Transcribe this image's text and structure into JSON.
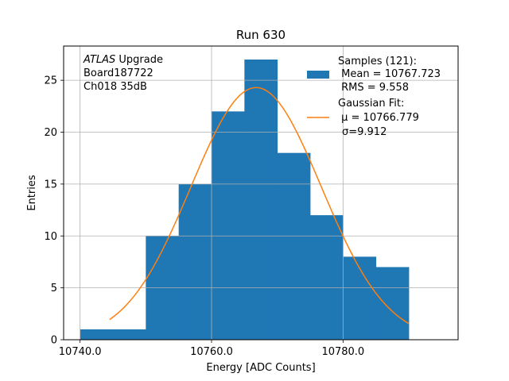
{
  "chart_data": {
    "type": "bar",
    "title": "Run 630",
    "xlabel": "Energy [ADC Counts]",
    "ylabel": "Entries",
    "xlim": [
      10737.5,
      10797.5
    ],
    "ylim": [
      0,
      28.3
    ],
    "x_ticks": [
      10740,
      10760,
      10780
    ],
    "x_tick_labels": [
      "10740.0",
      "10760.0",
      "10780.0"
    ],
    "y_ticks": [
      0,
      5,
      10,
      15,
      20,
      25
    ],
    "y_tick_labels": [
      "0",
      "5",
      "10",
      "15",
      "20",
      "25"
    ],
    "grid": true,
    "bin_edges": [
      10740,
      10745,
      10750,
      10755,
      10760,
      10765,
      10770,
      10775,
      10780,
      10785,
      10790
    ],
    "counts": [
      1,
      1,
      10,
      15,
      22,
      27,
      18,
      12,
      8,
      7
    ],
    "fit": {
      "type": "gaussian",
      "mu": 10766.779,
      "sigma": 9.912,
      "amplitude": 24.3,
      "x_range": [
        10744.5,
        10790
      ]
    },
    "colors": {
      "hist": "#1f77b4",
      "fit": "#ff7f0e",
      "grid": "#b0b0b0"
    },
    "annotation": [
      "ATLAS",
      " Upgrade",
      "Board187722",
      "Ch018 35dB"
    ],
    "legend": {
      "placement": "top-right",
      "hist_lines": [
        "Samples (121):",
        " Mean = 10767.723",
        " RMS = 9.558"
      ],
      "fit_lines": [
        "Gaussian Fit:",
        " μ = 10766.779",
        "σ=9.912"
      ]
    }
  }
}
